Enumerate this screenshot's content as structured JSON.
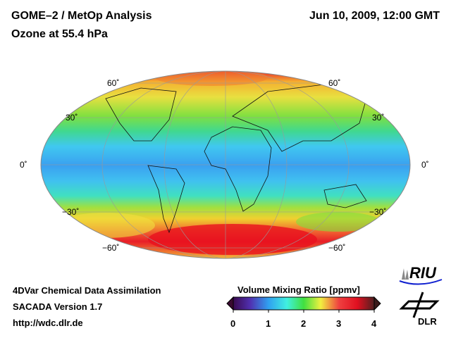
{
  "header": {
    "title_line1": "GOME–2 / MetOp Analysis",
    "title_line2": "Ozone at 55.4 hPa",
    "datetime": "Jun 10, 2009, 12:00 GMT"
  },
  "map": {
    "lat_labels_left": [
      "60˚",
      "30˚",
      "0˚",
      "−30˚",
      "−60˚"
    ],
    "lat_labels_right": [
      "60˚",
      "30˚",
      "0˚",
      "−30˚",
      "−60˚"
    ]
  },
  "footer": {
    "line1": "4DVar Chemical Data Assimilation",
    "line2": "SACADA Version 1.7",
    "line3": "http://wdc.dlr.de"
  },
  "colorbar": {
    "title": "Volume Mixing Ratio [ppmv]",
    "ticks": [
      "0",
      "1",
      "2",
      "3",
      "4"
    ],
    "range": [
      0,
      4
    ]
  },
  "logos": {
    "riu": "RIU",
    "dlr": "DLR"
  }
}
